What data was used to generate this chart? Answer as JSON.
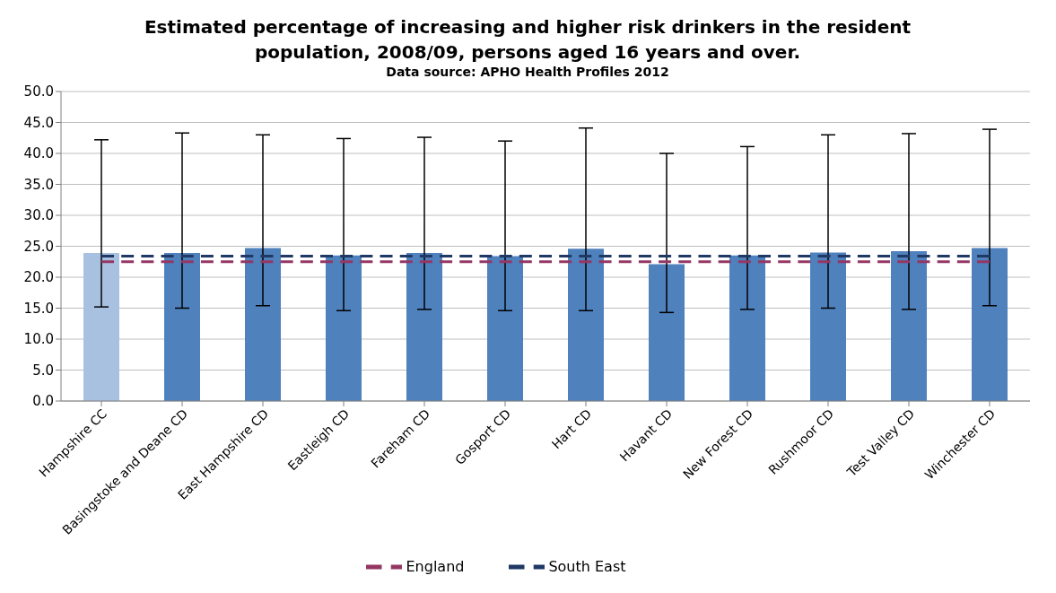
{
  "chart_data": {
    "type": "bar",
    "title": "Estimated percentage of increasing and higher risk drinkers in the resident population, 2008/09, persons aged 16 years and over.",
    "subtitle": "Data source: APHO Health Profiles 2012",
    "categories": [
      "Hampshire CC",
      "Basingstoke and Deane CD",
      "East Hampshire CD",
      "Eastleigh CD",
      "Fareham CD",
      "Gosport CD",
      "Hart CD",
      "Havant CD",
      "New Forest CD",
      "Rushmoor CD",
      "Test Valley CD",
      "Winchester CD"
    ],
    "series": [
      {
        "color": "#4f81bd",
        "colors": [
          "#a9c1e0",
          "#4f81bd",
          "#4f81bd",
          "#4f81bd",
          "#4f81bd",
          "#4f81bd",
          "#4f81bd",
          "#4f81bd",
          "#4f81bd",
          "#4f81bd",
          "#4f81bd",
          "#4f81bd"
        ],
        "values": [
          23.9,
          23.9,
          24.7,
          23.5,
          23.9,
          23.4,
          24.6,
          22.1,
          23.5,
          24.0,
          24.2,
          24.7
        ],
        "errors": [
          [
            15.2,
            42.2
          ],
          [
            15.0,
            43.3
          ],
          [
            15.4,
            43.0
          ],
          [
            14.6,
            42.4
          ],
          [
            14.8,
            42.6
          ],
          [
            14.6,
            42.0
          ],
          [
            14.6,
            44.1
          ],
          [
            14.3,
            40.0
          ],
          [
            14.8,
            41.1
          ],
          [
            15.0,
            43.0
          ],
          [
            14.8,
            43.2
          ],
          [
            15.4,
            43.9
          ]
        ]
      },
      {
        "type": "line",
        "name": "England",
        "color": "#953764",
        "line_style": "dashed",
        "marker": "none",
        "values": [
          22.5,
          22.5,
          22.5,
          22.5,
          22.5,
          22.5,
          22.5,
          22.5,
          22.5,
          22.5,
          22.5,
          22.5
        ]
      },
      {
        "type": "line",
        "name": "South East",
        "color": "#1f3864",
        "line_style": "dashed",
        "marker": "none",
        "values": [
          23.4,
          23.4,
          23.4,
          23.4,
          23.4,
          23.4,
          23.4,
          23.4,
          23.4,
          23.4,
          23.4,
          23.4
        ]
      }
    ],
    "ylim": [
      0,
      50
    ],
    "yticks": [
      {
        "value": 0,
        "label": "0.0"
      },
      {
        "value": 5,
        "label": "5.0"
      },
      {
        "value": 10,
        "label": "10.0"
      },
      {
        "value": 15,
        "label": "15.0"
      },
      {
        "value": 20,
        "label": "20.0"
      },
      {
        "value": 25,
        "label": "25.0"
      },
      {
        "value": 30,
        "label": "30.0"
      },
      {
        "value": 35,
        "label": "35.0"
      },
      {
        "value": 40,
        "label": "40.0"
      },
      {
        "value": 45,
        "label": "45.0"
      },
      {
        "value": 50,
        "label": "50.0"
      }
    ],
    "grid": "y",
    "legend": "bottom"
  }
}
